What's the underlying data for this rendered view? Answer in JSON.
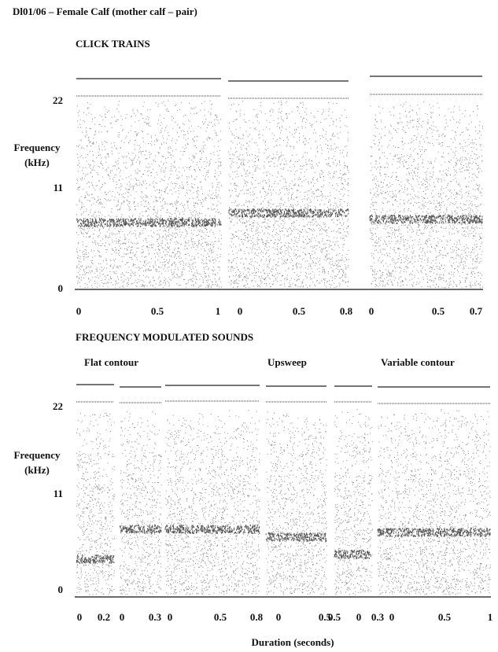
{
  "header": {
    "title": "Dl01/06 – Female Calf (mother calf – pair)"
  },
  "sections": [
    {
      "title": "CLICK TRAINS",
      "y_axis": {
        "label_line1": "Frequency",
        "label_line2": "(kHz)",
        "ticks": [
          "22",
          "11",
          "0"
        ]
      },
      "x_ticks": [
        "0",
        "0.5",
        "1",
        "0",
        "0.5",
        "0.8",
        "0",
        "0.5",
        "0.7"
      ]
    },
    {
      "title": "FREQUENCY MODULATED SOUNDS",
      "subtitles": [
        "Flat contour",
        "Upsweep",
        "Variable contour"
      ],
      "y_axis": {
        "label_line1": "Frequency",
        "label_line2": "(kHz)",
        "ticks": [
          "22",
          "11",
          "0"
        ]
      },
      "x_ticks": [
        "0",
        "0.2",
        "0",
        "0.3",
        "0",
        "0.5",
        "0.8",
        "0",
        "0.5",
        "0.5",
        "0",
        "0.3",
        "0",
        "0.5",
        "1"
      ]
    }
  ],
  "footer": {
    "x_label": "Duration (seconds)"
  }
}
